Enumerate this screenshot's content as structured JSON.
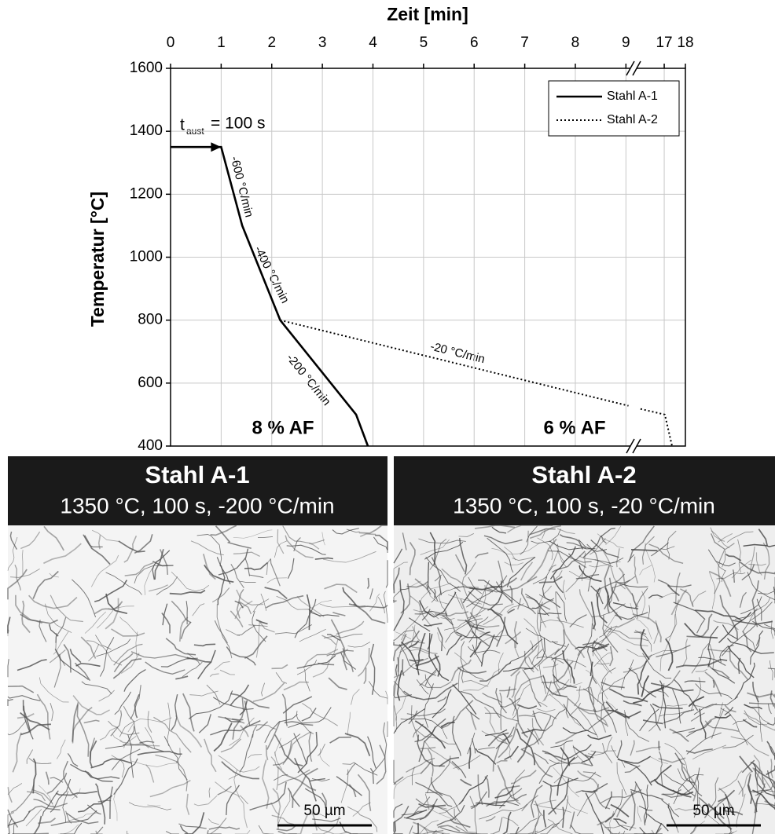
{
  "chart_data": {
    "type": "line",
    "x_label": "Zeit [min]",
    "y_label": "Temperatur [°C]",
    "xlim": [
      0,
      18
    ],
    "xbreak": [
      9.15,
      15.55
    ],
    "xticks": [
      0,
      1,
      2,
      3,
      4,
      5,
      6,
      7,
      8,
      9,
      17,
      18
    ],
    "ylim": [
      400,
      1600
    ],
    "yticks": [
      400,
      600,
      800,
      1000,
      1200,
      1400,
      1600
    ],
    "grid": true,
    "legend": "upper right",
    "series": [
      {
        "name": "Stahl A-1",
        "color": "#000000",
        "style": "solid",
        "x": [
          0,
          1,
          1.417,
          2.167,
          3.667,
          3.9
        ],
        "values": [
          1350,
          1350,
          1100,
          800,
          500,
          400
        ]
      },
      {
        "name": "Stahl A-2",
        "color": "#000000",
        "style": "dotted",
        "x": [
          2.167,
          9.05,
          null,
          15.88,
          17.03,
          17.37
        ],
        "values": [
          800,
          528,
          null,
          518,
          500,
          400
        ]
      }
    ],
    "annotations": [
      "t",
      "aust",
      "= 100 s",
      "-600 °C/min",
      "-400 °C/min",
      "-200 °C/min",
      "-20 °C/min",
      "8 % AF",
      "6 % AF"
    ]
  },
  "panels": [
    {
      "title": "Stahl A-1",
      "subtitle": "1350 °C, 100 s, -200 °C/min",
      "scale_bar": "50 µm"
    },
    {
      "title": "Stahl A-2",
      "subtitle": "1350 °C, 100 s, -20 °C/min",
      "scale_bar": "50 µm"
    }
  ]
}
